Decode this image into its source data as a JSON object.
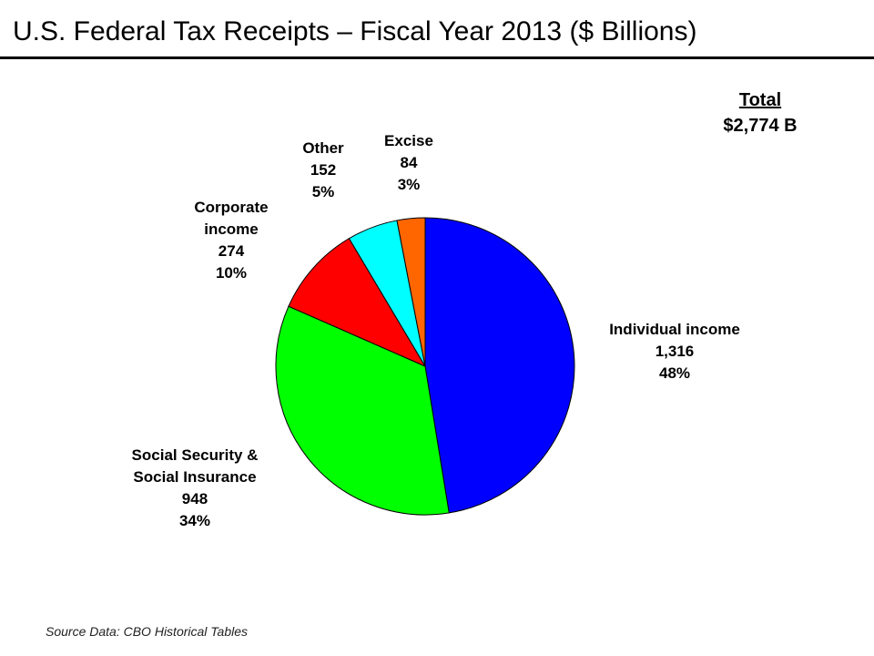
{
  "title": "U.S. Federal Tax Receipts – Fiscal Year 2013 ($ Billions)",
  "total": {
    "label": "Total",
    "value": "$2,774 B"
  },
  "source": "Source Data: CBO Historical Tables",
  "chart_data": {
    "type": "pie",
    "title": "U.S. Federal Tax Receipts – Fiscal Year 2013 ($ Billions)",
    "slices": [
      {
        "label": "Individual income",
        "value": 1316,
        "value_text": "1,316",
        "percent": "48%",
        "color": "#0000ff"
      },
      {
        "label": "Social Security & Social Insurance",
        "label_lines": [
          "Social Security &",
          "Social Insurance"
        ],
        "value": 948,
        "value_text": "948",
        "percent": "34%",
        "color": "#00ff00"
      },
      {
        "label": "Corporate income",
        "label_lines": [
          "Corporate",
          "income"
        ],
        "value": 274,
        "value_text": "274",
        "percent": "10%",
        "color": "#ff0000"
      },
      {
        "label": "Other",
        "value": 152,
        "value_text": "152",
        "percent": "5%",
        "color": "#00ffff"
      },
      {
        "label": "Excise",
        "value": 84,
        "value_text": "84",
        "percent": "3%",
        "color": "#ff6600"
      }
    ],
    "legend": "none"
  }
}
